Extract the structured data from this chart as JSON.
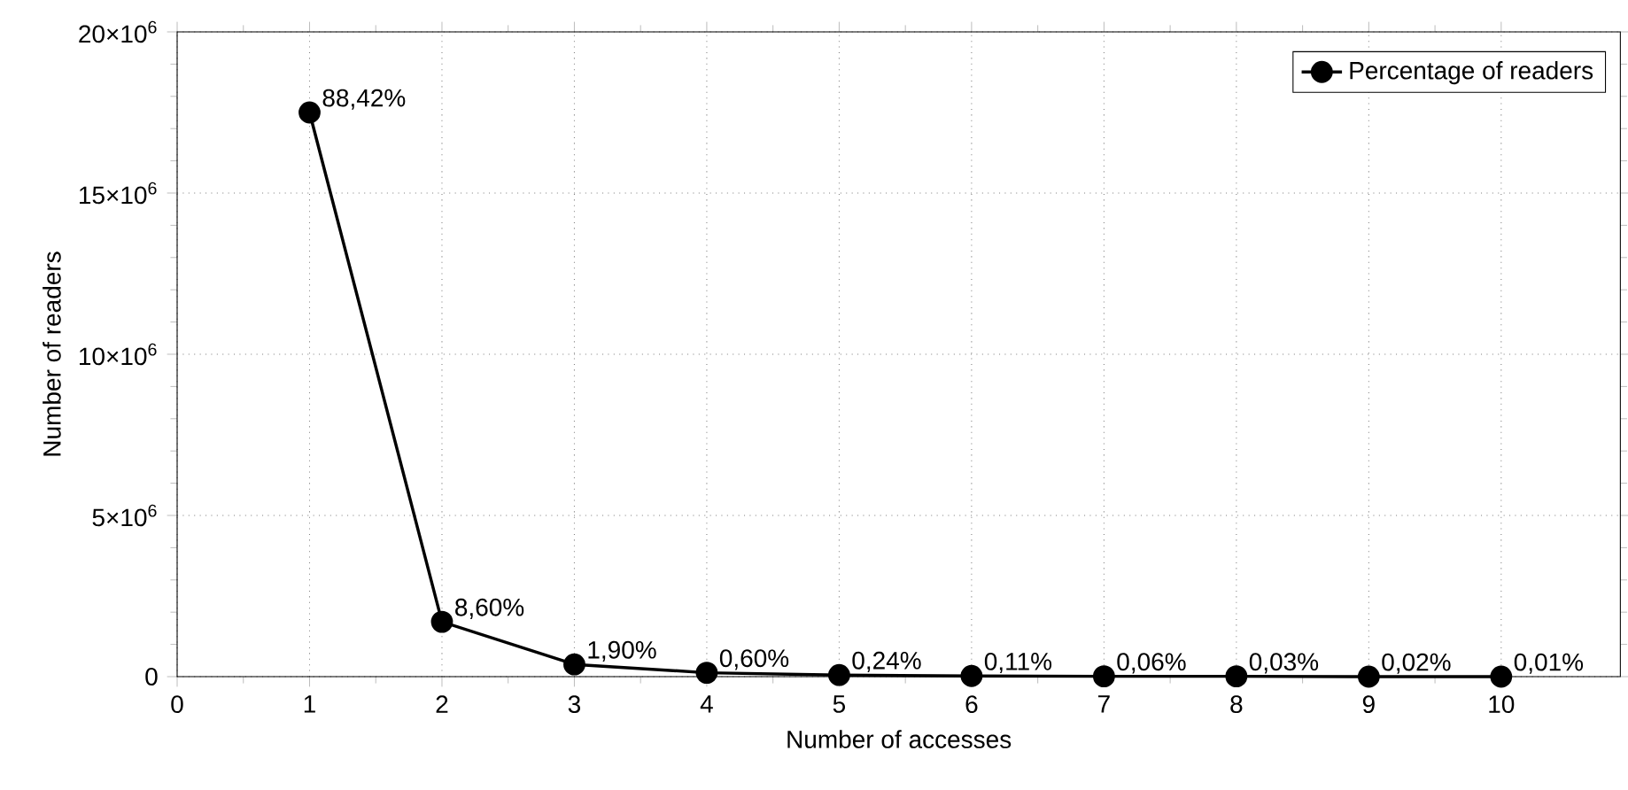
{
  "chart_data": {
    "type": "line",
    "xlabel": "Number of accesses",
    "ylabel": "Number of readers",
    "x": [
      1,
      2,
      3,
      4,
      5,
      6,
      7,
      8,
      9,
      10
    ],
    "series": [
      {
        "name": "Percentage of readers",
        "color": "#000000",
        "values": [
          17500000,
          1700000,
          380000,
          120000,
          50000,
          20000,
          10000,
          10000,
          0,
          0
        ]
      }
    ],
    "annotations": [
      {
        "text": "88,42%",
        "x": 1,
        "y": 17500000
      },
      {
        "text": "8,60%",
        "x": 2,
        "y": 1700000
      },
      {
        "text": "1,90%",
        "x": 3,
        "y": 380000
      },
      {
        "text": "0,60%",
        "x": 4,
        "y": 120000
      },
      {
        "text": "0,24%",
        "x": 5,
        "y": 50000
      },
      {
        "text": "0,11%",
        "x": 6,
        "y": 20000
      },
      {
        "text": "0,06%",
        "x": 7,
        "y": 10000
      },
      {
        "text": "0,03%",
        "x": 8,
        "y": 10000
      },
      {
        "text": "0,02%",
        "x": 9,
        "y": 0
      },
      {
        "text": "0,01%",
        "x": 10,
        "y": 0
      }
    ],
    "xlim": [
      0,
      10.9
    ],
    "ylim": [
      0,
      20000000
    ],
    "xticks": [
      0,
      1,
      2,
      3,
      4,
      5,
      6,
      7,
      8,
      9,
      10
    ],
    "yticks": [
      0,
      {
        "value": 5000000,
        "label": "5×10$^{6}$"
      },
      {
        "value": 10000000,
        "label": "10×10$^{6}$"
      },
      {
        "value": 15000000,
        "label": "15×10$^{6}$"
      },
      {
        "value": 20000000,
        "label": "20×10$^{6}$"
      }
    ],
    "grid": true,
    "legend": "top right",
    "marker": "circle",
    "line_style": "solid"
  }
}
